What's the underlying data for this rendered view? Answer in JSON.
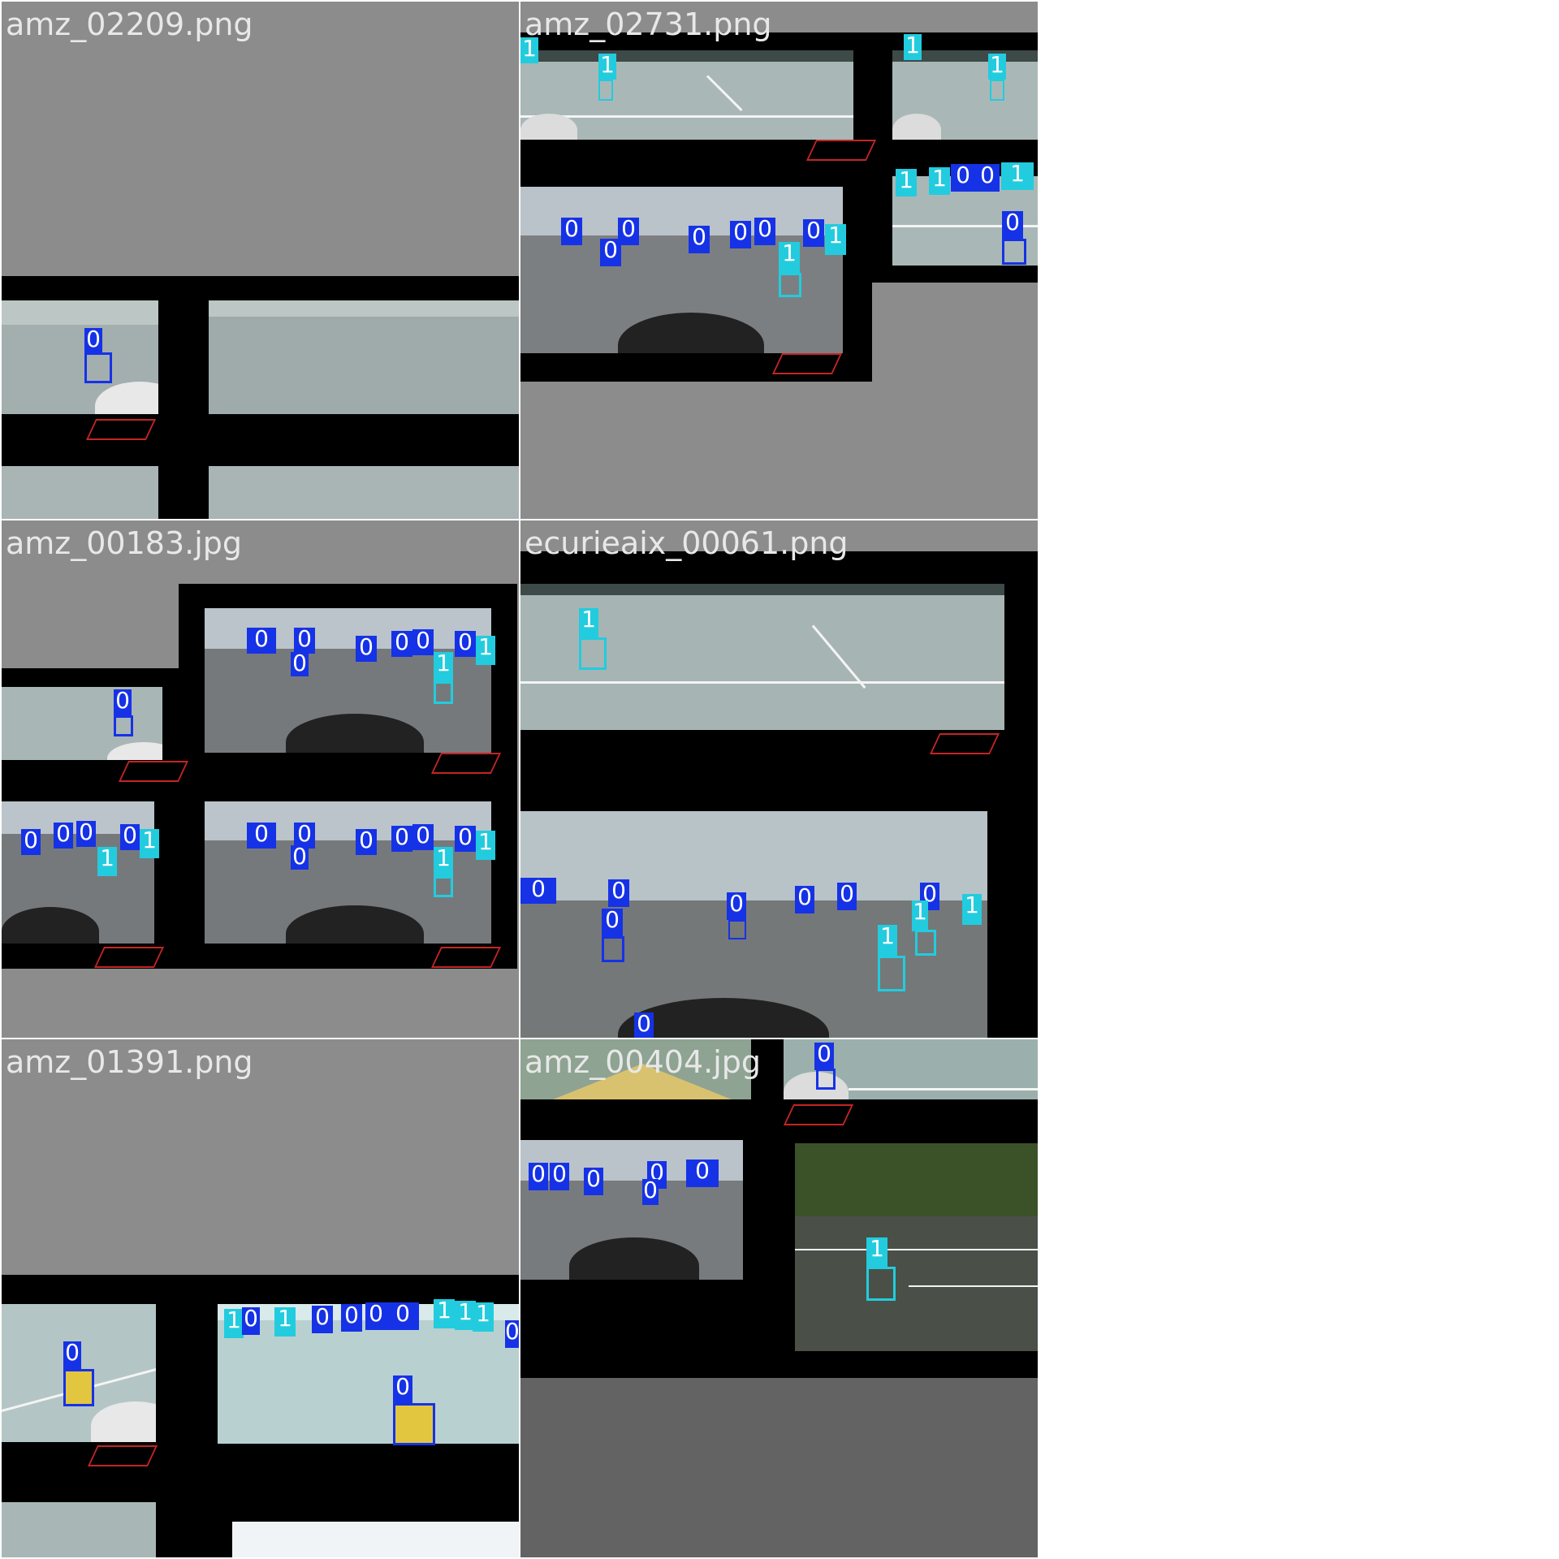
{
  "colors": {
    "class0": "#1632e6",
    "class1": "#22ccde",
    "tile_bg": "#8c8c8c",
    "tile_bg_dark": "#636363"
  },
  "tiles": [
    {
      "filename": "amz_02209.png"
    },
    {
      "filename": "amz_02731.png"
    },
    {
      "filename": "amz_00183.jpg"
    },
    {
      "filename": "ecurieaix_00061.png"
    },
    {
      "filename": "amz_01391.png"
    },
    {
      "filename": "amz_00404.jpg"
    }
  ],
  "class_labels": [
    "0",
    "1"
  ]
}
